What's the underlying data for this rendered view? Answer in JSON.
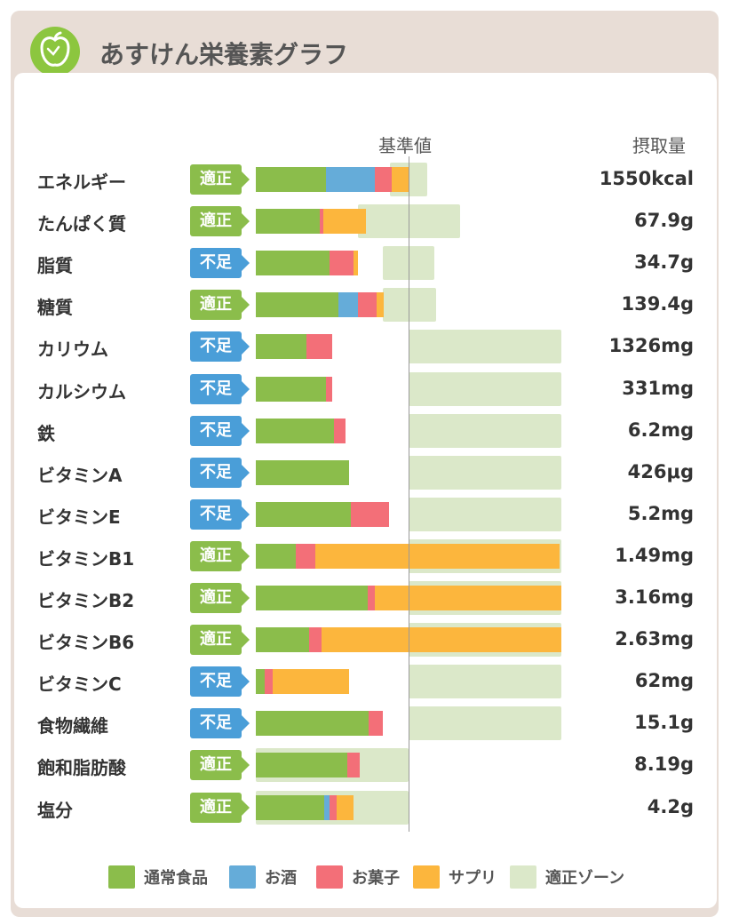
{
  "header": {
    "title": "あすけん栄養素グラフ",
    "logo_icon": "apple-scale-icon"
  },
  "columns": {
    "reference": "基準値",
    "intake": "摂取量"
  },
  "colors": {
    "ordinary_food": "#8bbd4b",
    "alcohol": "#65acd9",
    "snacks": "#f36f78",
    "supplement": "#fcb63d",
    "appropriate_zone": "#dbe8c9",
    "status_appropriate": "#8bbd4b",
    "status_insufficient": "#4a9ed8"
  },
  "legend": [
    {
      "label": "通常食品",
      "color": "#8bbd4b"
    },
    {
      "label": "お酒",
      "color": "#65acd9"
    },
    {
      "label": "お菓子",
      "color": "#f36f78"
    },
    {
      "label": "サプリ",
      "color": "#fcb63d"
    },
    {
      "label": "適正ゾーン",
      "color": "#dbe8c9"
    }
  ],
  "chart_data": {
    "type": "bar",
    "orientation": "horizontal",
    "stacked": true,
    "x_unit": "percent_of_reference",
    "reference_value": 100,
    "series_names": [
      "通常食品",
      "お酒",
      "お菓子",
      "サプリ"
    ],
    "rows": [
      {
        "label": "エネルギー",
        "status": "適正",
        "status_type": "ok",
        "value": "1550kcal",
        "zone": [
          88,
          112
        ],
        "segments": [
          46,
          32,
          11,
          11
        ]
      },
      {
        "label": "たんぱく質",
        "status": "適正",
        "status_type": "ok",
        "value": "67.9g",
        "zone": [
          67,
          134
        ],
        "segments": [
          42,
          0,
          2,
          28
        ]
      },
      {
        "label": "脂質",
        "status": "不足",
        "status_type": "low",
        "value": "34.7g",
        "zone": [
          83,
          117
        ],
        "segments": [
          48,
          0,
          16,
          3
        ]
      },
      {
        "label": "糖質",
        "status": "適正",
        "status_type": "ok",
        "value": "139.4g",
        "zone": [
          83,
          118
        ],
        "segments": [
          54,
          13,
          12,
          5
        ]
      },
      {
        "label": "カリウム",
        "status": "不足",
        "status_type": "low",
        "value": "1326mg",
        "zone": [
          100,
          200
        ],
        "segments": [
          33,
          0,
          17,
          0
        ]
      },
      {
        "label": "カルシウム",
        "status": "不足",
        "status_type": "low",
        "value": "331mg",
        "zone": [
          100,
          200
        ],
        "segments": [
          46,
          0,
          4,
          0
        ]
      },
      {
        "label": "鉄",
        "status": "不足",
        "status_type": "low",
        "value": "6.2mg",
        "zone": [
          100,
          200
        ],
        "segments": [
          51,
          0,
          8,
          0
        ]
      },
      {
        "label": "ビタミンA",
        "status": "不足",
        "status_type": "low",
        "value": "426μg",
        "zone": [
          100,
          200
        ],
        "segments": [
          61,
          0,
          0,
          0
        ]
      },
      {
        "label": "ビタミンE",
        "status": "不足",
        "status_type": "low",
        "value": "5.2mg",
        "zone": [
          100,
          200
        ],
        "segments": [
          62,
          0,
          25,
          0
        ]
      },
      {
        "label": "ビタミンB1",
        "status": "適正",
        "status_type": "ok",
        "value": "1.49mg",
        "zone": [
          100,
          200
        ],
        "segments": [
          26,
          0,
          13,
          160
        ]
      },
      {
        "label": "ビタミンB2",
        "status": "適正",
        "status_type": "ok",
        "value": "3.16mg",
        "zone": [
          100,
          200
        ],
        "segments": [
          73,
          0,
          5,
          122
        ]
      },
      {
        "label": "ビタミンB6",
        "status": "適正",
        "status_type": "ok",
        "value": "2.63mg",
        "zone": [
          100,
          200
        ],
        "segments": [
          35,
          0,
          8,
          157
        ]
      },
      {
        "label": "ビタミンC",
        "status": "不足",
        "status_type": "low",
        "value": "62mg",
        "zone": [
          100,
          200
        ],
        "segments": [
          6,
          0,
          5,
          50
        ]
      },
      {
        "label": "食物繊維",
        "status": "不足",
        "status_type": "low",
        "value": "15.1g",
        "zone": [
          100,
          200
        ],
        "segments": [
          74,
          0,
          9,
          0
        ]
      },
      {
        "label": "飽和脂肪酸",
        "status": "適正",
        "status_type": "ok",
        "value": "8.19g",
        "zone": [
          0,
          100
        ],
        "segments": [
          60,
          0,
          8,
          0
        ]
      },
      {
        "label": "塩分",
        "status": "適正",
        "status_type": "ok",
        "value": "4.2g",
        "zone": [
          0,
          100
        ],
        "segments": [
          45,
          3,
          5,
          11
        ]
      }
    ]
  }
}
